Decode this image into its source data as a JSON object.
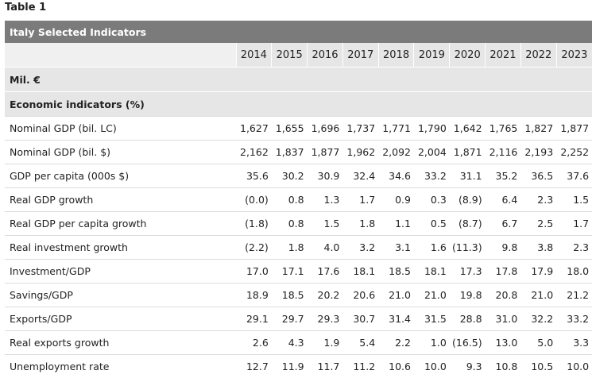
{
  "caption": "Table 1",
  "table": {
    "title": "Italy Selected Indicators",
    "years": [
      "2014",
      "2015",
      "2016",
      "2017",
      "2018",
      "2019",
      "2020",
      "2021",
      "2022",
      "2023"
    ],
    "unit_row": "Mil. €",
    "section_row": "Economic indicators (%)",
    "rows": [
      {
        "label": "Nominal GDP (bil. LC)",
        "values": [
          "1,627",
          "1,655",
          "1,696",
          "1,737",
          "1,771",
          "1,790",
          "1,642",
          "1,765",
          "1,827",
          "1,877"
        ]
      },
      {
        "label": "Nominal GDP (bil. $)",
        "values": [
          "2,162",
          "1,837",
          "1,877",
          "1,962",
          "2,092",
          "2,004",
          "1,871",
          "2,116",
          "2,193",
          "2,252"
        ]
      },
      {
        "label": "GDP per capita (000s $)",
        "values": [
          "35.6",
          "30.2",
          "30.9",
          "32.4",
          "34.6",
          "33.2",
          "31.1",
          "35.2",
          "36.5",
          "37.6"
        ]
      },
      {
        "label": "Real GDP growth",
        "values": [
          "(0.0)",
          "0.8",
          "1.3",
          "1.7",
          "0.9",
          "0.3",
          "(8.9)",
          "6.4",
          "2.3",
          "1.5"
        ]
      },
      {
        "label": "Real GDP per capita growth",
        "values": [
          "(1.8)",
          "0.8",
          "1.5",
          "1.8",
          "1.1",
          "0.5",
          "(8.7)",
          "6.7",
          "2.5",
          "1.7"
        ]
      },
      {
        "label": "Real investment growth",
        "values": [
          "(2.2)",
          "1.8",
          "4.0",
          "3.2",
          "3.1",
          "1.6",
          "(11.3)",
          "9.8",
          "3.8",
          "2.3"
        ]
      },
      {
        "label": "Investment/GDP",
        "values": [
          "17.0",
          "17.1",
          "17.6",
          "18.1",
          "18.5",
          "18.1",
          "17.3",
          "17.8",
          "17.9",
          "18.0"
        ]
      },
      {
        "label": "Savings/GDP",
        "values": [
          "18.9",
          "18.5",
          "20.2",
          "20.6",
          "21.0",
          "21.0",
          "19.8",
          "20.8",
          "21.0",
          "21.2"
        ]
      },
      {
        "label": "Exports/GDP",
        "values": [
          "29.1",
          "29.7",
          "29.3",
          "30.7",
          "31.4",
          "31.5",
          "28.8",
          "31.0",
          "32.2",
          "33.2"
        ]
      },
      {
        "label": "Real exports growth",
        "values": [
          "2.6",
          "4.3",
          "1.9",
          "5.4",
          "2.2",
          "1.0",
          "(16.5)",
          "13.0",
          "5.0",
          "3.3"
        ]
      },
      {
        "label": "Unemployment rate",
        "values": [
          "12.7",
          "11.9",
          "11.7",
          "11.2",
          "10.6",
          "10.0",
          "9.3",
          "10.8",
          "10.5",
          "10.0"
        ]
      }
    ]
  }
}
